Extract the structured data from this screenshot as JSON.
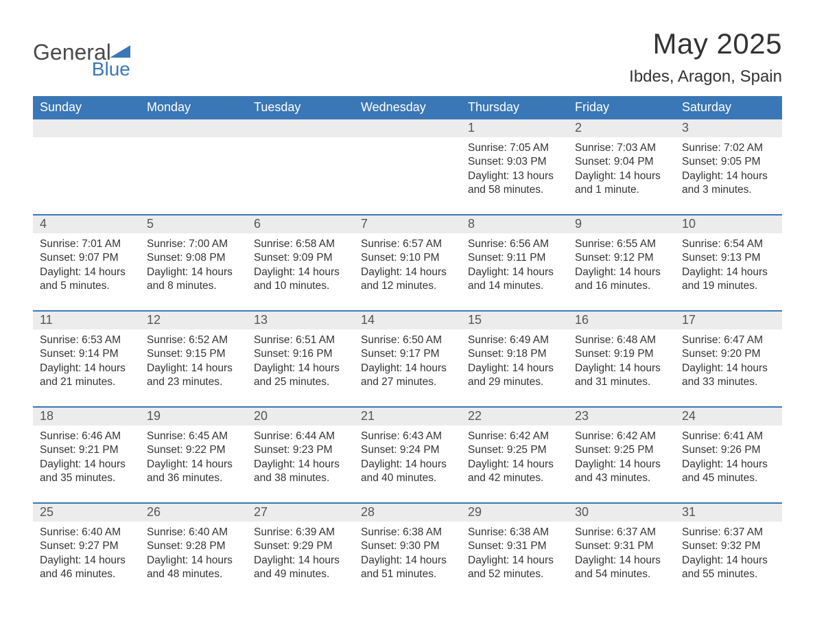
{
  "logo": {
    "general": "General",
    "blue": "Blue"
  },
  "title": "May 2025",
  "location": "Ibdes, Aragon, Spain",
  "colors": {
    "header_bg": "#3a77b6",
    "header_text": "#ffffff",
    "daynum_bg": "#ececec",
    "daynum_text": "#555555",
    "body_text": "#333333",
    "rule": "#3a77b6",
    "background": "#ffffff"
  },
  "day_headers": [
    "Sunday",
    "Monday",
    "Tuesday",
    "Wednesday",
    "Thursday",
    "Friday",
    "Saturday"
  ],
  "weeks": [
    [
      null,
      null,
      null,
      null,
      {
        "n": "1",
        "sunrise": "Sunrise: 7:05 AM",
        "sunset": "Sunset: 9:03 PM",
        "daylight": "Daylight: 13 hours and 58 minutes."
      },
      {
        "n": "2",
        "sunrise": "Sunrise: 7:03 AM",
        "sunset": "Sunset: 9:04 PM",
        "daylight": "Daylight: 14 hours and 1 minute."
      },
      {
        "n": "3",
        "sunrise": "Sunrise: 7:02 AM",
        "sunset": "Sunset: 9:05 PM",
        "daylight": "Daylight: 14 hours and 3 minutes."
      }
    ],
    [
      {
        "n": "4",
        "sunrise": "Sunrise: 7:01 AM",
        "sunset": "Sunset: 9:07 PM",
        "daylight": "Daylight: 14 hours and 5 minutes."
      },
      {
        "n": "5",
        "sunrise": "Sunrise: 7:00 AM",
        "sunset": "Sunset: 9:08 PM",
        "daylight": "Daylight: 14 hours and 8 minutes."
      },
      {
        "n": "6",
        "sunrise": "Sunrise: 6:58 AM",
        "sunset": "Sunset: 9:09 PM",
        "daylight": "Daylight: 14 hours and 10 minutes."
      },
      {
        "n": "7",
        "sunrise": "Sunrise: 6:57 AM",
        "sunset": "Sunset: 9:10 PM",
        "daylight": "Daylight: 14 hours and 12 minutes."
      },
      {
        "n": "8",
        "sunrise": "Sunrise: 6:56 AM",
        "sunset": "Sunset: 9:11 PM",
        "daylight": "Daylight: 14 hours and 14 minutes."
      },
      {
        "n": "9",
        "sunrise": "Sunrise: 6:55 AM",
        "sunset": "Sunset: 9:12 PM",
        "daylight": "Daylight: 14 hours and 16 minutes."
      },
      {
        "n": "10",
        "sunrise": "Sunrise: 6:54 AM",
        "sunset": "Sunset: 9:13 PM",
        "daylight": "Daylight: 14 hours and 19 minutes."
      }
    ],
    [
      {
        "n": "11",
        "sunrise": "Sunrise: 6:53 AM",
        "sunset": "Sunset: 9:14 PM",
        "daylight": "Daylight: 14 hours and 21 minutes."
      },
      {
        "n": "12",
        "sunrise": "Sunrise: 6:52 AM",
        "sunset": "Sunset: 9:15 PM",
        "daylight": "Daylight: 14 hours and 23 minutes."
      },
      {
        "n": "13",
        "sunrise": "Sunrise: 6:51 AM",
        "sunset": "Sunset: 9:16 PM",
        "daylight": "Daylight: 14 hours and 25 minutes."
      },
      {
        "n": "14",
        "sunrise": "Sunrise: 6:50 AM",
        "sunset": "Sunset: 9:17 PM",
        "daylight": "Daylight: 14 hours and 27 minutes."
      },
      {
        "n": "15",
        "sunrise": "Sunrise: 6:49 AM",
        "sunset": "Sunset: 9:18 PM",
        "daylight": "Daylight: 14 hours and 29 minutes."
      },
      {
        "n": "16",
        "sunrise": "Sunrise: 6:48 AM",
        "sunset": "Sunset: 9:19 PM",
        "daylight": "Daylight: 14 hours and 31 minutes."
      },
      {
        "n": "17",
        "sunrise": "Sunrise: 6:47 AM",
        "sunset": "Sunset: 9:20 PM",
        "daylight": "Daylight: 14 hours and 33 minutes."
      }
    ],
    [
      {
        "n": "18",
        "sunrise": "Sunrise: 6:46 AM",
        "sunset": "Sunset: 9:21 PM",
        "daylight": "Daylight: 14 hours and 35 minutes."
      },
      {
        "n": "19",
        "sunrise": "Sunrise: 6:45 AM",
        "sunset": "Sunset: 9:22 PM",
        "daylight": "Daylight: 14 hours and 36 minutes."
      },
      {
        "n": "20",
        "sunrise": "Sunrise: 6:44 AM",
        "sunset": "Sunset: 9:23 PM",
        "daylight": "Daylight: 14 hours and 38 minutes."
      },
      {
        "n": "21",
        "sunrise": "Sunrise: 6:43 AM",
        "sunset": "Sunset: 9:24 PM",
        "daylight": "Daylight: 14 hours and 40 minutes."
      },
      {
        "n": "22",
        "sunrise": "Sunrise: 6:42 AM",
        "sunset": "Sunset: 9:25 PM",
        "daylight": "Daylight: 14 hours and 42 minutes."
      },
      {
        "n": "23",
        "sunrise": "Sunrise: 6:42 AM",
        "sunset": "Sunset: 9:25 PM",
        "daylight": "Daylight: 14 hours and 43 minutes."
      },
      {
        "n": "24",
        "sunrise": "Sunrise: 6:41 AM",
        "sunset": "Sunset: 9:26 PM",
        "daylight": "Daylight: 14 hours and 45 minutes."
      }
    ],
    [
      {
        "n": "25",
        "sunrise": "Sunrise: 6:40 AM",
        "sunset": "Sunset: 9:27 PM",
        "daylight": "Daylight: 14 hours and 46 minutes."
      },
      {
        "n": "26",
        "sunrise": "Sunrise: 6:40 AM",
        "sunset": "Sunset: 9:28 PM",
        "daylight": "Daylight: 14 hours and 48 minutes."
      },
      {
        "n": "27",
        "sunrise": "Sunrise: 6:39 AM",
        "sunset": "Sunset: 9:29 PM",
        "daylight": "Daylight: 14 hours and 49 minutes."
      },
      {
        "n": "28",
        "sunrise": "Sunrise: 6:38 AM",
        "sunset": "Sunset: 9:30 PM",
        "daylight": "Daylight: 14 hours and 51 minutes."
      },
      {
        "n": "29",
        "sunrise": "Sunrise: 6:38 AM",
        "sunset": "Sunset: 9:31 PM",
        "daylight": "Daylight: 14 hours and 52 minutes."
      },
      {
        "n": "30",
        "sunrise": "Sunrise: 6:37 AM",
        "sunset": "Sunset: 9:31 PM",
        "daylight": "Daylight: 14 hours and 54 minutes."
      },
      {
        "n": "31",
        "sunrise": "Sunrise: 6:37 AM",
        "sunset": "Sunset: 9:32 PM",
        "daylight": "Daylight: 14 hours and 55 minutes."
      }
    ]
  ]
}
